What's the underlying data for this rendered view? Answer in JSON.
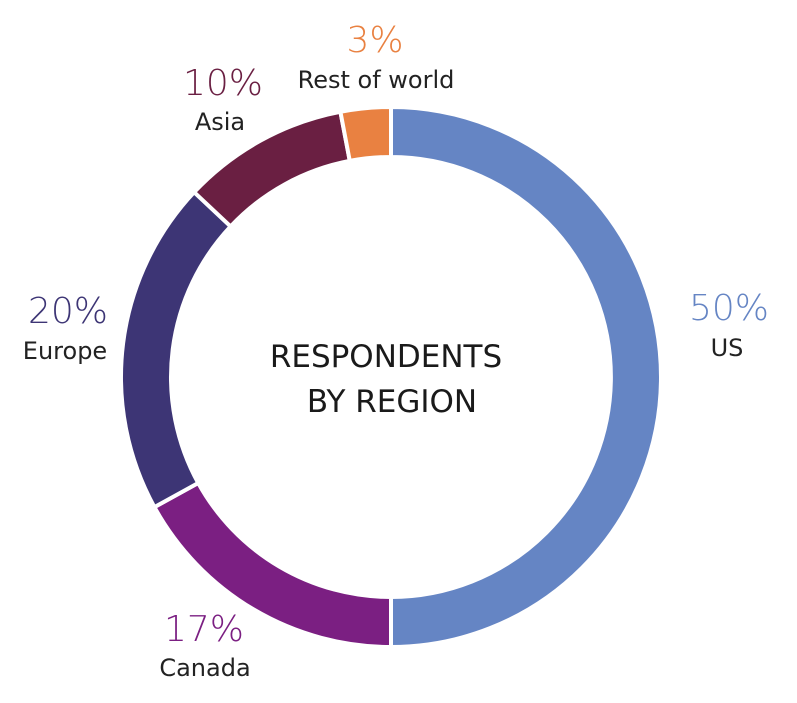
{
  "chart_data": {
    "type": "pie",
    "donut": true,
    "title_lines": [
      "RESPONDENTS",
      "BY REGION"
    ],
    "categories": [
      "US",
      "Canada",
      "Europe",
      "Asia",
      "Rest of world"
    ],
    "values": [
      50,
      17,
      20,
      10,
      3
    ],
    "value_labels": [
      "50%",
      "17%",
      "20%",
      "10%",
      "3%"
    ],
    "colors": [
      "#6585c4",
      "#7b1f82",
      "#3d3575",
      "#6a1f42",
      "#e98141"
    ],
    "start_angle": "12 o'clock",
    "direction": "clockwise",
    "legend": "none"
  }
}
